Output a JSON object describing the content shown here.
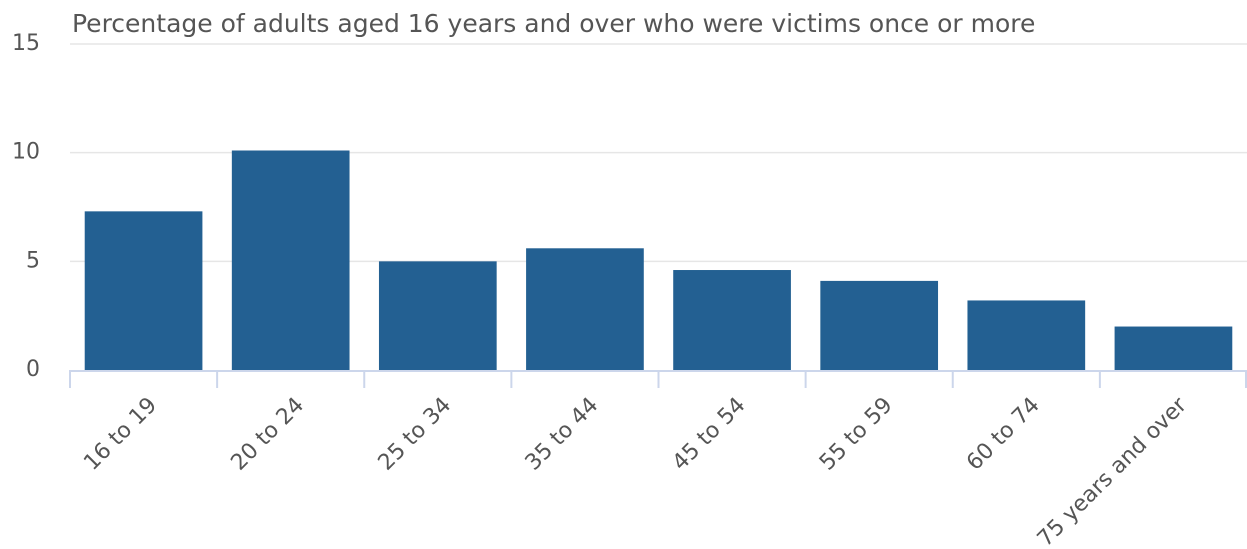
{
  "chart_data": {
    "type": "bar",
    "title": "Percentage of adults aged 16 years and over who were victims once or more",
    "categories": [
      "16 to 19",
      "20 to 24",
      "25 to 34",
      "35 to 44",
      "45 to 54",
      "55 to 59",
      "60 to 74",
      "75 years and over"
    ],
    "values": [
      7.3,
      10.1,
      5.0,
      5.6,
      4.6,
      4.1,
      3.2,
      2.0
    ],
    "color": "#236092",
    "ylim": [
      0,
      15
    ],
    "yticks": [
      0,
      5,
      10,
      15
    ],
    "grid": true
  }
}
